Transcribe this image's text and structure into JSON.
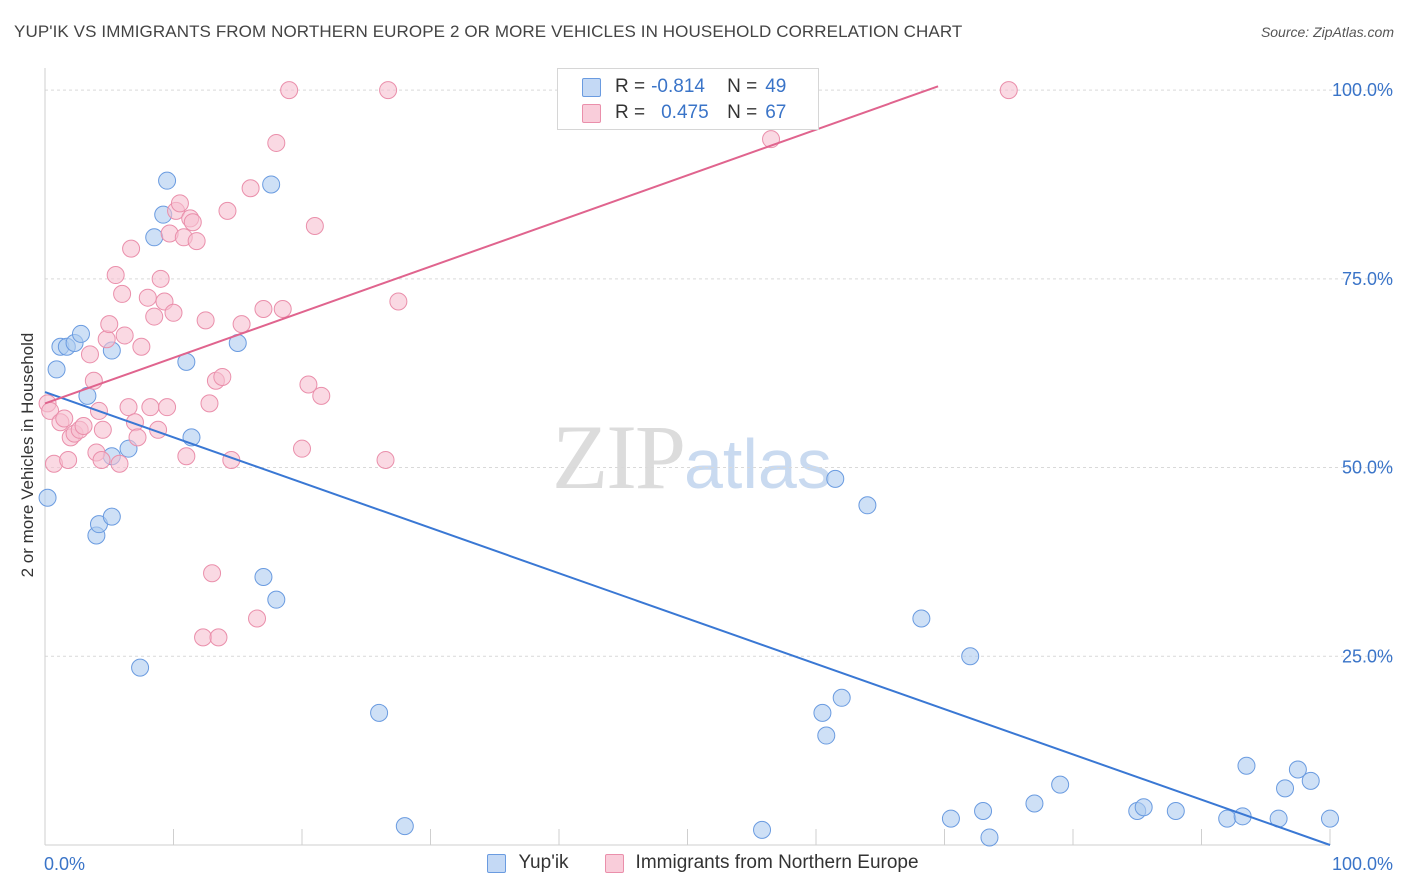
{
  "header": {
    "title": "YUP'IK VS IMMIGRANTS FROM NORTHERN EUROPE 2 OR MORE VEHICLES IN HOUSEHOLD CORRELATION CHART",
    "source": "Source: ZipAtlas.com"
  },
  "watermark": {
    "zip": "ZIP",
    "atlas": "atlas"
  },
  "legend_top": {
    "series1": {
      "r_label": "R =",
      "r_value": "-0.814",
      "n_label": "N =",
      "n_value": "49"
    },
    "series2": {
      "r_label": "R =",
      "r_value": "0.475",
      "n_label": "N =",
      "n_value": "67"
    }
  },
  "colors": {
    "blue_fill": "#aecbf0",
    "blue_stroke": "#6a9be0",
    "blue_line": "#3a78d4",
    "pink_fill": "#f7bfd0",
    "pink_stroke": "#ea8fab",
    "pink_line": "#e0648e",
    "grid": "#d9d9d9",
    "tick_label": "#3a74c8"
  },
  "chart_data": {
    "type": "scatter",
    "title": "YUP'IK VS IMMIGRANTS FROM NORTHERN EUROPE 2 OR MORE VEHICLES IN HOUSEHOLD CORRELATION CHART",
    "xlabel": "",
    "ylabel": "2 or more Vehicles in Household",
    "xlim": [
      0,
      100
    ],
    "ylim": [
      0,
      102
    ],
    "x_tick_labels": [
      "0.0%",
      "100.0%"
    ],
    "y_ticks": [
      25,
      50,
      75,
      100
    ],
    "y_tick_labels": [
      "25.0%",
      "50.0%",
      "75.0%",
      "100.0%"
    ],
    "grid": true,
    "legend": "bottom-center",
    "series": [
      {
        "name": "Yup'ik",
        "color": "#aecbf0",
        "r": -0.814,
        "n": 49,
        "trend": {
          "x": [
            0,
            100
          ],
          "y": [
            60.0,
            0.0
          ]
        },
        "points": [
          [
            0.2,
            46.0
          ],
          [
            0.9,
            63.0
          ],
          [
            1.2,
            66.0
          ],
          [
            1.7,
            66.0
          ],
          [
            2.3,
            66.5
          ],
          [
            2.8,
            67.7
          ],
          [
            3.3,
            59.5
          ],
          [
            4.0,
            41.0
          ],
          [
            4.2,
            42.5
          ],
          [
            5.2,
            43.5
          ],
          [
            5.2,
            65.5
          ],
          [
            5.2,
            51.5
          ],
          [
            6.5,
            52.5
          ],
          [
            7.4,
            23.5
          ],
          [
            8.5,
            80.5
          ],
          [
            9.2,
            83.5
          ],
          [
            9.5,
            88.0
          ],
          [
            11.0,
            64.0
          ],
          [
            11.4,
            54.0
          ],
          [
            15.0,
            66.5
          ],
          [
            17.0,
            35.5
          ],
          [
            17.6,
            87.5
          ],
          [
            18.0,
            32.5
          ],
          [
            26.0,
            17.5
          ],
          [
            28.0,
            2.5
          ],
          [
            55.8,
            2.0
          ],
          [
            60.5,
            17.5
          ],
          [
            60.8,
            14.5
          ],
          [
            61.5,
            48.5
          ],
          [
            62.0,
            19.5
          ],
          [
            64.0,
            45.0
          ],
          [
            68.2,
            30.0
          ],
          [
            70.5,
            3.5
          ],
          [
            72.0,
            25.0
          ],
          [
            73.0,
            4.5
          ],
          [
            73.5,
            1.0
          ],
          [
            77.0,
            5.5
          ],
          [
            79.0,
            8.0
          ],
          [
            85.0,
            4.5
          ],
          [
            85.5,
            5.0
          ],
          [
            88.0,
            4.5
          ],
          [
            92.0,
            3.5
          ],
          [
            93.2,
            3.8
          ],
          [
            93.5,
            10.5
          ],
          [
            96.0,
            3.5
          ],
          [
            96.5,
            7.5
          ],
          [
            97.5,
            10.0
          ],
          [
            98.5,
            8.5
          ],
          [
            100.0,
            3.5
          ]
        ]
      },
      {
        "name": "Immigrants from Northern Europe",
        "color": "#f7bfd0",
        "r": 0.475,
        "n": 67,
        "trend": {
          "x": [
            0,
            69.5
          ],
          "y": [
            58.5,
            100.5
          ]
        },
        "points": [
          [
            0.2,
            58.5
          ],
          [
            0.4,
            57.5
          ],
          [
            0.7,
            50.5
          ],
          [
            1.2,
            56.0
          ],
          [
            1.5,
            56.5
          ],
          [
            1.8,
            51.0
          ],
          [
            2.0,
            54.0
          ],
          [
            2.3,
            54.5
          ],
          [
            2.7,
            55.0
          ],
          [
            3.0,
            55.5
          ],
          [
            3.5,
            65.0
          ],
          [
            3.8,
            61.5
          ],
          [
            4.0,
            52.0
          ],
          [
            4.2,
            57.5
          ],
          [
            4.4,
            51.0
          ],
          [
            4.5,
            55.0
          ],
          [
            4.8,
            67.0
          ],
          [
            5.0,
            69.0
          ],
          [
            5.5,
            75.5
          ],
          [
            5.8,
            50.5
          ],
          [
            6.0,
            73.0
          ],
          [
            6.2,
            67.5
          ],
          [
            6.5,
            58.0
          ],
          [
            6.7,
            79.0
          ],
          [
            7.0,
            56.0
          ],
          [
            7.2,
            54.0
          ],
          [
            7.5,
            66.0
          ],
          [
            8.0,
            72.5
          ],
          [
            8.2,
            58.0
          ],
          [
            8.5,
            70.0
          ],
          [
            8.8,
            55.0
          ],
          [
            9.0,
            75.0
          ],
          [
            9.3,
            72.0
          ],
          [
            9.5,
            58.0
          ],
          [
            9.7,
            81.0
          ],
          [
            10.0,
            70.5
          ],
          [
            10.2,
            84.0
          ],
          [
            10.5,
            85.0
          ],
          [
            10.8,
            80.5
          ],
          [
            11.0,
            51.5
          ],
          [
            11.3,
            83.0
          ],
          [
            11.5,
            82.5
          ],
          [
            11.8,
            80.0
          ],
          [
            12.3,
            27.5
          ],
          [
            12.5,
            69.5
          ],
          [
            12.8,
            58.5
          ],
          [
            13.0,
            36.0
          ],
          [
            13.3,
            61.5
          ],
          [
            13.5,
            27.5
          ],
          [
            13.8,
            62.0
          ],
          [
            14.2,
            84.0
          ],
          [
            14.5,
            51.0
          ],
          [
            15.3,
            69.0
          ],
          [
            16.0,
            87.0
          ],
          [
            16.5,
            30.0
          ],
          [
            17.0,
            71.0
          ],
          [
            18.0,
            93.0
          ],
          [
            18.5,
            71.0
          ],
          [
            19.0,
            100.0
          ],
          [
            20.0,
            52.5
          ],
          [
            20.5,
            61.0
          ],
          [
            21.0,
            82.0
          ],
          [
            21.5,
            59.5
          ],
          [
            26.5,
            51.0
          ],
          [
            26.7,
            100.0
          ],
          [
            27.5,
            72.0
          ],
          [
            56.5,
            93.5
          ],
          [
            75.0,
            100.0
          ]
        ]
      }
    ]
  },
  "legend_bottom": {
    "items": [
      {
        "label": "Yup'ik"
      },
      {
        "label": "Immigrants from Northern Europe"
      }
    ]
  }
}
